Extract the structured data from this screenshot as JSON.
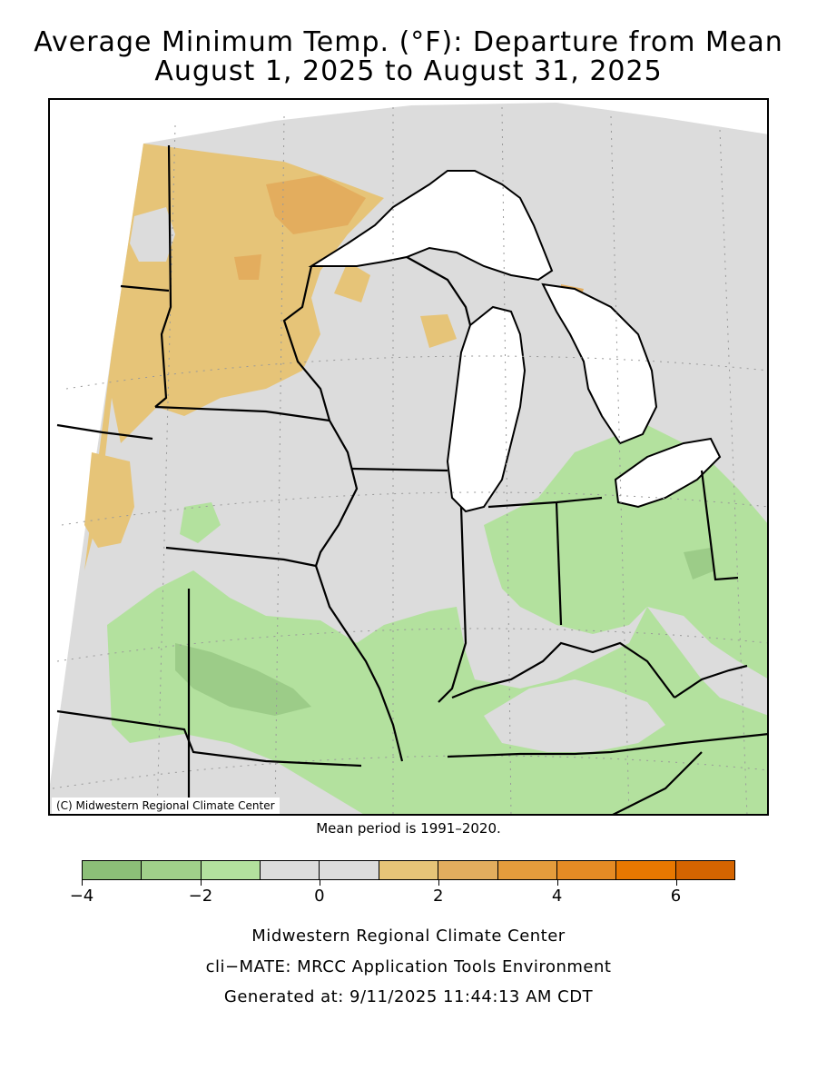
{
  "title": {
    "line1": "Average Minimum Temp. (°F): Departure from Mean",
    "line2": "August 1, 2025 to August 31, 2025"
  },
  "map": {
    "copyright": "(C) Midwestern Regional Climate Center",
    "mean_note": "Mean period is 1991–2020.",
    "colors": {
      "background_gray": "#dcdcdc",
      "lake_water": "#ffffff",
      "orange_light": "#e6c478",
      "orange_medium": "#e3ad5e",
      "green_light": "#b3e19e",
      "green_medium": "#9ccc88"
    }
  },
  "legend": {
    "bins": [
      {
        "from": -4,
        "to": -3,
        "color": "#8cbf78"
      },
      {
        "from": -3,
        "to": -2,
        "color": "#a0d08a"
      },
      {
        "from": -2,
        "to": -1,
        "color": "#b3e19e"
      },
      {
        "from": -1,
        "to": 0,
        "color": "#dcdcdc"
      },
      {
        "from": 0,
        "to": 1,
        "color": "#dcdcdc"
      },
      {
        "from": 1,
        "to": 2,
        "color": "#e6c478"
      },
      {
        "from": 2,
        "to": 3,
        "color": "#e3ad5e"
      },
      {
        "from": 3,
        "to": 4,
        "color": "#e49c3c"
      },
      {
        "from": 4,
        "to": 5,
        "color": "#e58b24"
      },
      {
        "from": 5,
        "to": 6,
        "color": "#e87800"
      },
      {
        "from": 6,
        "to": 7,
        "color": "#d46400"
      }
    ],
    "tick_labels": [
      "−4",
      "−2",
      "0",
      "2",
      "4",
      "6"
    ]
  },
  "footer": {
    "line1": "Midwestern Regional Climate Center",
    "line2": "cli−MATE: MRCC Application Tools Environment",
    "line3": "Generated at: 9/11/2025 11:44:13 AM CDT"
  }
}
